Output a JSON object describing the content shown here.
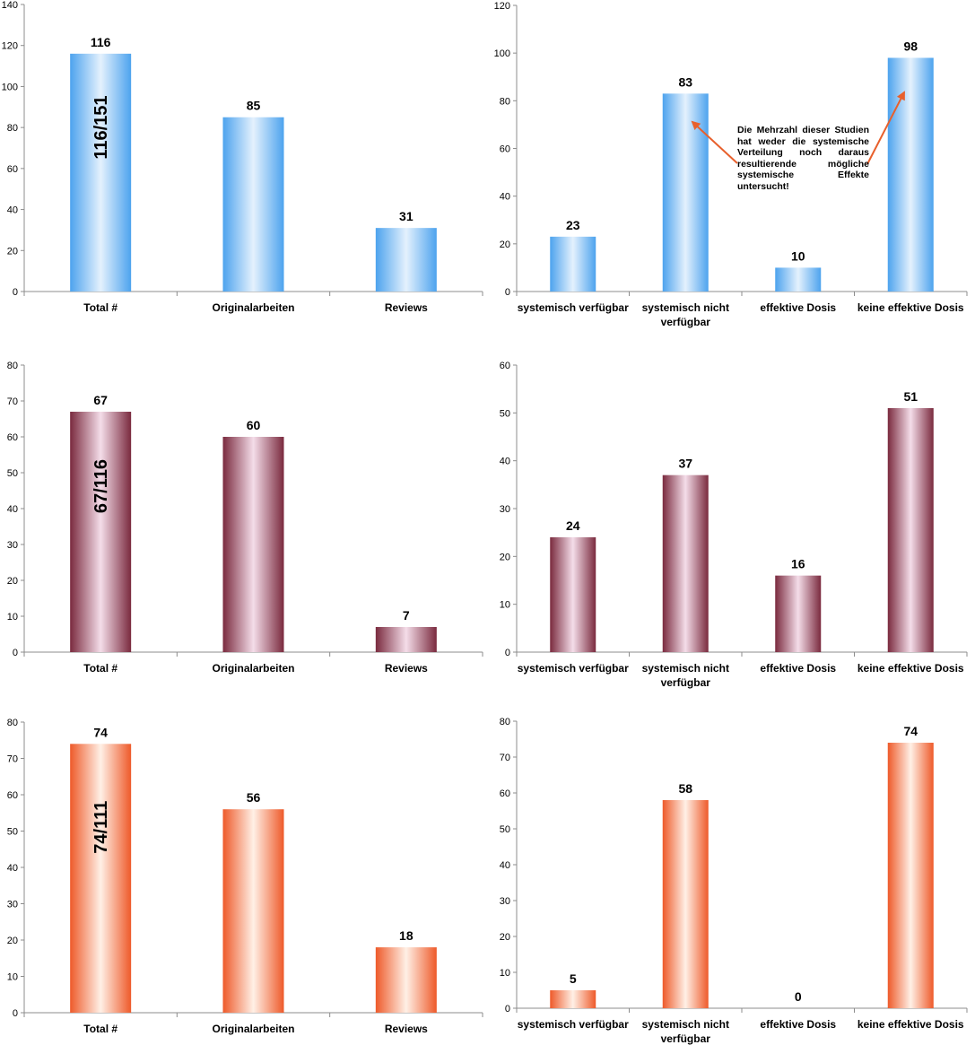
{
  "colors": {
    "blue": {
      "edge": "#4da3ee",
      "mid": "#e4f1fd"
    },
    "maroon": {
      "edge": "#7a2a3e",
      "mid": "#f4dde9"
    },
    "orange": {
      "edge": "#ee5a2a",
      "mid": "#fff0e6"
    },
    "arrow": "#e8602c",
    "axis": "#8c8c8c"
  },
  "annotation": "Die Mehrzahl dieser Studien hat weder die systemische Verteilung noch daraus resultierende mögliche systemische Effekte untersucht!",
  "chart_data": [
    {
      "type": "bar",
      "color": "blue",
      "categories": [
        "Total #",
        "Originalarbeiten",
        "Reviews"
      ],
      "values": [
        116,
        85,
        31
      ],
      "ylim": [
        0,
        140
      ],
      "ystep": 20,
      "inner_label": "116/151",
      "title": "",
      "xlabel": "",
      "ylabel": ""
    },
    {
      "type": "bar",
      "color": "blue",
      "categories": [
        "systemisch verfügbar",
        "systemisch nicht verfügbar",
        "effektive Dosis",
        "keine effektive Dosis"
      ],
      "values": [
        23,
        83,
        10,
        98
      ],
      "ylim": [
        0,
        120
      ],
      "ystep": 20,
      "title": "",
      "xlabel": "",
      "ylabel": ""
    },
    {
      "type": "bar",
      "color": "maroon",
      "categories": [
        "Total #",
        "Originalarbeiten",
        "Reviews"
      ],
      "values": [
        67,
        60,
        7
      ],
      "ylim": [
        0,
        80
      ],
      "ystep": 10,
      "inner_label": "67/116",
      "title": "",
      "xlabel": "",
      "ylabel": ""
    },
    {
      "type": "bar",
      "color": "maroon",
      "categories": [
        "systemisch verfügbar",
        "systemisch nicht verfügbar",
        "effektive Dosis",
        "keine effektive Dosis"
      ],
      "values": [
        24,
        37,
        16,
        51
      ],
      "ylim": [
        0,
        60
      ],
      "ystep": 10,
      "title": "",
      "xlabel": "",
      "ylabel": ""
    },
    {
      "type": "bar",
      "color": "orange",
      "categories": [
        "Total #",
        "Originalarbeiten",
        "Reviews"
      ],
      "values": [
        74,
        56,
        18
      ],
      "ylim": [
        0,
        80
      ],
      "ystep": 10,
      "inner_label": "74/111",
      "title": "",
      "xlabel": "",
      "ylabel": ""
    },
    {
      "type": "bar",
      "color": "orange",
      "categories": [
        "systemisch verfügbar",
        "systemisch nicht verfügbar",
        "effektive Dosis",
        "keine effektive Dosis"
      ],
      "values": [
        5,
        58,
        0,
        74
      ],
      "ylim": [
        0,
        80
      ],
      "ystep": 10,
      "title": "",
      "xlabel": "",
      "ylabel": ""
    }
  ]
}
